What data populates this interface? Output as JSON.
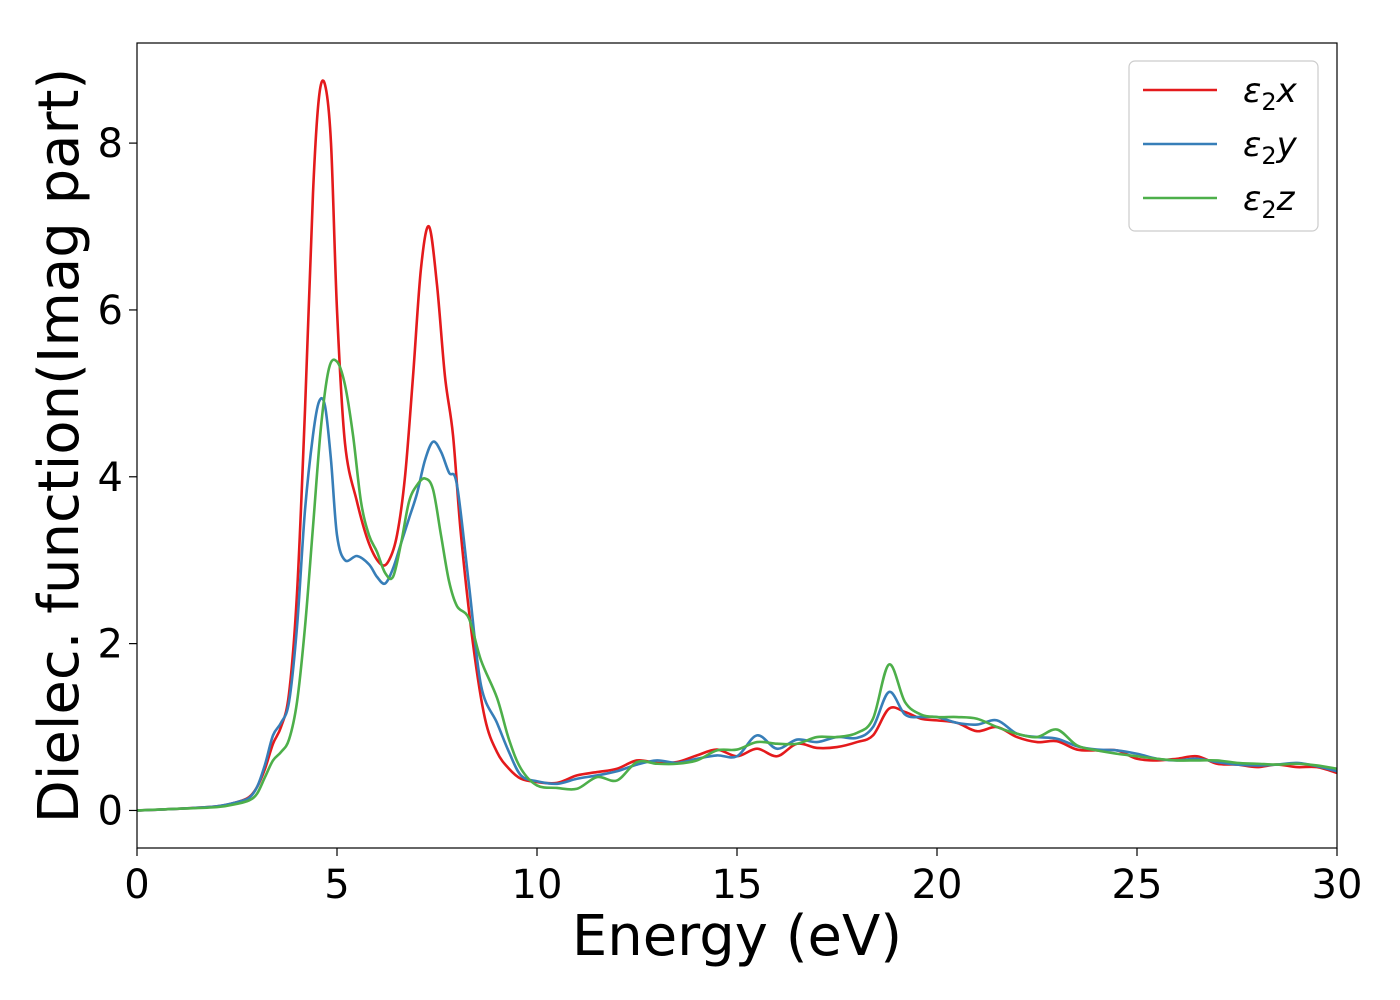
{
  "chart_data": {
    "type": "line",
    "title": "",
    "xlabel": "Energy (eV)",
    "ylabel": "Dielec. function(Imag part)",
    "xlim": [
      0,
      30
    ],
    "ylim": [
      -0.45,
      9.2
    ],
    "xticks": [
      0,
      5,
      10,
      15,
      20,
      25,
      30
    ],
    "yticks": [
      0,
      2,
      4,
      6,
      8
    ],
    "grid": false,
    "legend_position": "top-right",
    "series": [
      {
        "name": "ε₂x",
        "label_base": "ε",
        "label_sub": "2",
        "label_var": "x",
        "color": "#e41a1c",
        "x": [
          0,
          1,
          2,
          2.5,
          2.8,
          3.0,
          3.2,
          3.4,
          3.6,
          3.8,
          4.0,
          4.2,
          4.4,
          4.55,
          4.7,
          4.85,
          5.0,
          5.2,
          5.5,
          5.8,
          6.1,
          6.3,
          6.5,
          6.7,
          6.9,
          7.1,
          7.3,
          7.5,
          7.7,
          7.9,
          8.1,
          8.4,
          8.7,
          9.0,
          9.3,
          9.6,
          10.0,
          10.5,
          11.0,
          11.5,
          12.0,
          12.5,
          13.0,
          13.5,
          14.0,
          14.5,
          15.0,
          15.5,
          16.0,
          16.5,
          17.0,
          17.5,
          18.0,
          18.4,
          18.8,
          19.2,
          19.6,
          20.0,
          20.5,
          21.0,
          21.5,
          22.0,
          22.5,
          23.0,
          23.5,
          24.0,
          24.5,
          25.0,
          25.5,
          26.0,
          26.5,
          27.0,
          27.5,
          28.0,
          28.5,
          29.0,
          29.5,
          30.0
        ],
        "y": [
          0,
          0.02,
          0.05,
          0.1,
          0.16,
          0.28,
          0.5,
          0.8,
          1.0,
          1.4,
          2.6,
          4.8,
          7.4,
          8.55,
          8.7,
          8.0,
          6.0,
          4.4,
          3.7,
          3.2,
          2.95,
          3.0,
          3.3,
          4.0,
          5.2,
          6.5,
          7.0,
          6.3,
          5.2,
          4.5,
          3.3,
          2.0,
          1.1,
          0.7,
          0.5,
          0.38,
          0.34,
          0.33,
          0.42,
          0.46,
          0.5,
          0.6,
          0.57,
          0.58,
          0.66,
          0.73,
          0.65,
          0.74,
          0.65,
          0.8,
          0.75,
          0.76,
          0.82,
          0.9,
          1.22,
          1.18,
          1.1,
          1.08,
          1.05,
          0.95,
          1.0,
          0.88,
          0.82,
          0.83,
          0.73,
          0.72,
          0.72,
          0.62,
          0.6,
          0.62,
          0.65,
          0.56,
          0.55,
          0.52,
          0.55,
          0.52,
          0.52,
          0.45
        ]
      },
      {
        "name": "ε₂y",
        "label_base": "ε",
        "label_sub": "2",
        "label_var": "y",
        "color": "#377eb8",
        "x": [
          0,
          1,
          2,
          2.5,
          2.8,
          3.0,
          3.2,
          3.4,
          3.6,
          3.8,
          4.0,
          4.2,
          4.4,
          4.55,
          4.7,
          4.85,
          5.0,
          5.2,
          5.5,
          5.8,
          6.0,
          6.2,
          6.4,
          6.6,
          6.8,
          7.0,
          7.2,
          7.4,
          7.6,
          7.8,
          8.0,
          8.3,
          8.6,
          9.0,
          9.3,
          9.6,
          10.0,
          10.5,
          11.0,
          11.5,
          12.0,
          12.5,
          13.0,
          13.5,
          14.0,
          14.5,
          15.0,
          15.5,
          16.0,
          16.5,
          17.0,
          17.5,
          18.0,
          18.4,
          18.8,
          19.2,
          19.6,
          20.0,
          20.5,
          21.0,
          21.5,
          22.0,
          22.5,
          23.0,
          23.5,
          24.0,
          24.5,
          25.0,
          25.5,
          26.0,
          26.5,
          27.0,
          27.5,
          28.0,
          28.5,
          29.0,
          29.5,
          30.0
        ],
        "y": [
          0,
          0.02,
          0.05,
          0.1,
          0.15,
          0.28,
          0.55,
          0.9,
          1.05,
          1.3,
          2.2,
          3.6,
          4.5,
          4.9,
          4.85,
          4.2,
          3.3,
          3.0,
          3.05,
          2.95,
          2.8,
          2.72,
          2.9,
          3.2,
          3.5,
          3.8,
          4.2,
          4.42,
          4.3,
          4.05,
          3.9,
          2.7,
          1.5,
          1.05,
          0.7,
          0.42,
          0.35,
          0.32,
          0.38,
          0.42,
          0.47,
          0.55,
          0.6,
          0.57,
          0.62,
          0.66,
          0.65,
          0.9,
          0.74,
          0.85,
          0.82,
          0.88,
          0.87,
          1.0,
          1.42,
          1.15,
          1.12,
          1.12,
          1.05,
          1.03,
          1.08,
          0.92,
          0.88,
          0.86,
          0.77,
          0.73,
          0.72,
          0.68,
          0.62,
          0.6,
          0.62,
          0.58,
          0.55,
          0.54,
          0.55,
          0.57,
          0.53,
          0.47
        ]
      },
      {
        "name": "ε₂z",
        "label_base": "ε",
        "label_sub": "2",
        "label_var": "z",
        "color": "#4daf4a",
        "x": [
          0,
          1,
          2,
          2.5,
          2.8,
          3.0,
          3.2,
          3.4,
          3.6,
          3.8,
          4.0,
          4.2,
          4.4,
          4.6,
          4.8,
          5.0,
          5.2,
          5.4,
          5.6,
          5.8,
          6.0,
          6.2,
          6.4,
          6.6,
          6.8,
          7.0,
          7.2,
          7.4,
          7.6,
          7.8,
          8.0,
          8.3,
          8.6,
          9.0,
          9.3,
          9.6,
          10.0,
          10.5,
          11.0,
          11.5,
          12.0,
          12.5,
          13.0,
          13.5,
          14.0,
          14.5,
          15.0,
          15.5,
          16.0,
          16.5,
          17.0,
          17.5,
          18.0,
          18.4,
          18.8,
          19.2,
          19.6,
          20.0,
          20.5,
          21.0,
          21.5,
          22.0,
          22.5,
          23.0,
          23.5,
          24.0,
          24.5,
          25.0,
          25.5,
          26.0,
          26.5,
          27.0,
          27.5,
          28.0,
          28.5,
          29.0,
          29.5,
          30.0
        ],
        "y": [
          0,
          0.02,
          0.04,
          0.08,
          0.12,
          0.2,
          0.4,
          0.6,
          0.7,
          0.85,
          1.3,
          2.2,
          3.4,
          4.6,
          5.3,
          5.38,
          5.1,
          4.5,
          3.7,
          3.3,
          3.1,
          2.85,
          2.8,
          3.2,
          3.7,
          3.9,
          3.98,
          3.85,
          3.3,
          2.75,
          2.45,
          2.3,
          1.8,
          1.35,
          0.85,
          0.5,
          0.3,
          0.27,
          0.26,
          0.4,
          0.36,
          0.58,
          0.56,
          0.56,
          0.6,
          0.72,
          0.73,
          0.82,
          0.8,
          0.8,
          0.88,
          0.88,
          0.93,
          1.1,
          1.75,
          1.3,
          1.15,
          1.12,
          1.12,
          1.1,
          1.0,
          0.92,
          0.88,
          0.97,
          0.78,
          0.72,
          0.68,
          0.65,
          0.62,
          0.6,
          0.6,
          0.6,
          0.57,
          0.56,
          0.55,
          0.56,
          0.54,
          0.5
        ]
      }
    ]
  }
}
